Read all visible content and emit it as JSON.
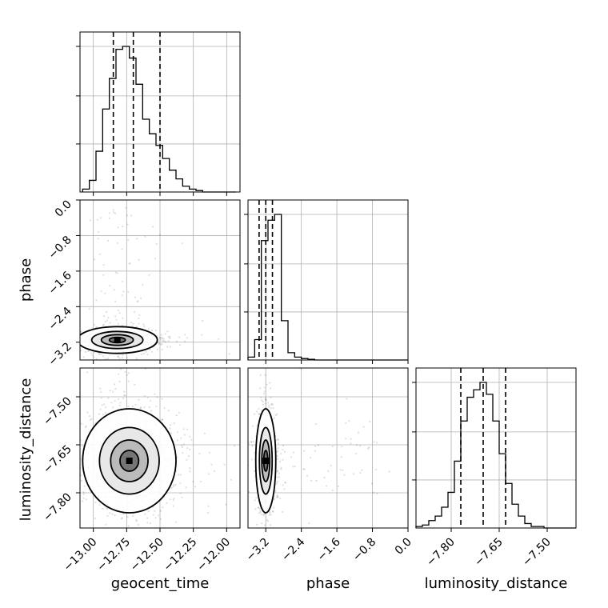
{
  "chart_data": {
    "type": "corner",
    "parameters": [
      "geocent_time",
      "phase",
      "luminosity_distance"
    ],
    "grid": true,
    "ranges": {
      "geocent_time": [
        -13.1,
        -11.9
      ],
      "phase": [
        -3.6,
        0.0
      ],
      "luminosity_distance": [
        -7.91,
        -7.41
      ]
    },
    "ticks": {
      "geocent_time": [
        "−13.00",
        "−12.75",
        "−12.50",
        "−12.25",
        "−12.00"
      ],
      "geocent_time_values": [
        -13.0,
        -12.75,
        -12.5,
        -12.25,
        -12.0
      ],
      "phase": [
        "−3.2",
        "−2.4",
        "−1.6",
        "−0.8",
        "0.0"
      ],
      "phase_values": [
        -3.2,
        -2.4,
        -1.6,
        -0.8,
        0.0
      ],
      "luminosity_distance": [
        "−7.80",
        "−7.65",
        "−7.50"
      ],
      "luminosity_distance_values": [
        -7.8,
        -7.65,
        -7.5
      ]
    },
    "histograms": {
      "geocent_time": {
        "bin_start": -13.08,
        "bin_width": 0.05,
        "counts": [
          2,
          8,
          28,
          57,
          78,
          98,
          100,
          92,
          74,
          50,
          40,
          32,
          23,
          15,
          9,
          4,
          2,
          1,
          0,
          0,
          0,
          0,
          0
        ],
        "quantiles": [
          -12.85,
          -12.7,
          -12.5
        ]
      },
      "phase": {
        "bin_start": -3.6,
        "bin_width": 0.15,
        "counts": [
          2,
          14,
          82,
          96,
          100,
          27,
          5,
          2,
          1,
          0.5,
          0,
          0,
          0,
          0,
          0,
          0,
          0,
          0,
          0,
          0,
          0,
          0,
          0,
          0
        ],
        "quantiles": [
          -3.35,
          -3.2,
          -3.05
        ]
      },
      "luminosity_distance": {
        "bin_start": -7.91,
        "bin_width": 0.02,
        "counts": [
          1,
          2,
          5,
          8,
          14,
          24,
          45,
          72,
          88,
          93,
          98,
          90,
          72,
          50,
          30,
          16,
          8,
          3,
          1,
          1,
          0,
          0,
          0,
          0,
          0
        ],
        "quantiles": [
          -7.77,
          -7.7,
          -7.63
        ]
      }
    },
    "joint": {
      "geocent_time_vs_phase": {
        "peak": [
          -12.82,
          -3.15
        ],
        "spread": [
          0.12,
          0.12
        ]
      },
      "geocent_time_vs_luminosity_distance": {
        "peak": [
          -12.73,
          -7.7
        ],
        "spread": [
          0.14,
          0.065
        ]
      },
      "phase_vs_luminosity_distance": {
        "peak": [
          -3.2,
          -7.7
        ],
        "spread": [
          0.09,
          0.065
        ]
      }
    }
  }
}
